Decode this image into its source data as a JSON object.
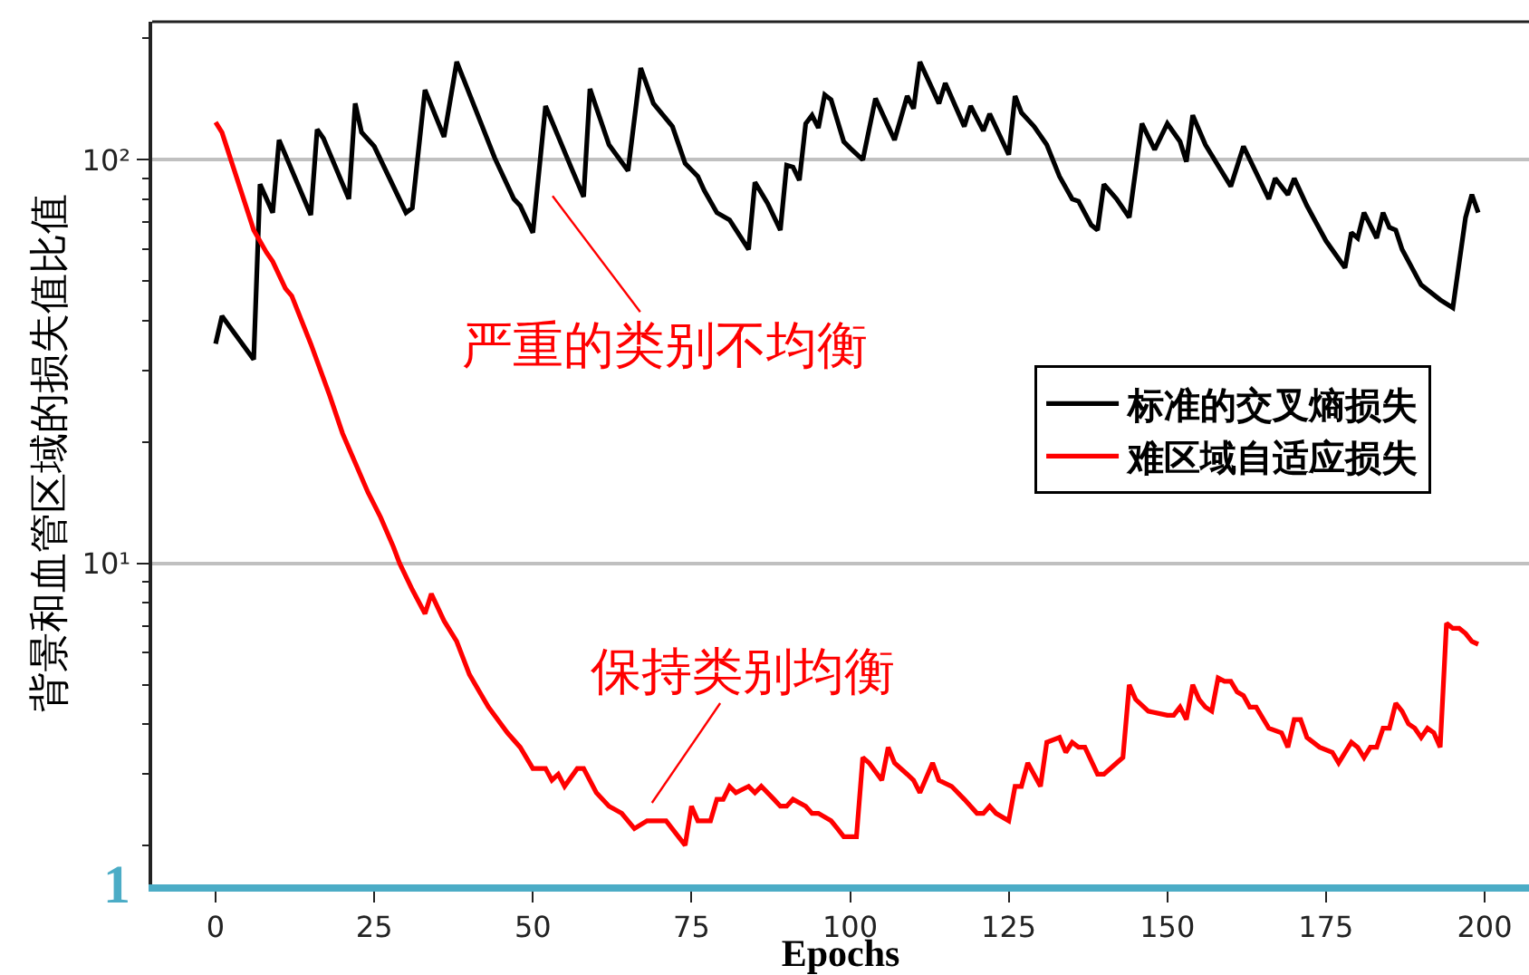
{
  "chart_data": {
    "type": "line",
    "xlabel": "Epochs",
    "ylabel": "背景和血管区域的损失值比值",
    "annotations": [
      "严重的类别不均衡",
      "保持类别均衡",
      "1"
    ],
    "xlim": [
      -10,
      207
    ],
    "xticks": [
      0,
      25,
      50,
      75,
      100,
      125,
      150,
      175,
      200
    ],
    "ylim": [
      1.6,
      220
    ],
    "yticks": [
      {
        "value": 2,
        "label": null
      },
      {
        "value": 3,
        "label": null
      },
      {
        "value": 4,
        "label": null
      },
      {
        "value": 5,
        "label": null
      },
      {
        "value": 6,
        "label": null
      },
      {
        "value": 7,
        "label": null
      },
      {
        "value": 8,
        "label": null
      },
      {
        "value": 9,
        "label": null
      },
      {
        "value": 10,
        "label": "10¹"
      },
      {
        "value": 20,
        "label": null
      },
      {
        "value": 30,
        "label": null
      },
      {
        "value": 40,
        "label": null
      },
      {
        "value": 50,
        "label": null
      },
      {
        "value": 60,
        "label": null
      },
      {
        "value": 70,
        "label": null
      },
      {
        "value": 80,
        "label": null
      },
      {
        "value": 90,
        "label": null
      },
      {
        "value": 100,
        "label": "10²"
      },
      {
        "value": 200,
        "label": null
      }
    ],
    "log": "y",
    "grid": "y",
    "legend": "right",
    "series": [
      {
        "name": "标准的交叉熵损失",
        "color": "#000000",
        "x": [
          0,
          1,
          6,
          7,
          9,
          10,
          15,
          16,
          17,
          21,
          22,
          23,
          25,
          30,
          31,
          33,
          36,
          38,
          44,
          47,
          48,
          50,
          52,
          56,
          58,
          59,
          62,
          65,
          67,
          69,
          72,
          74,
          76,
          77,
          79,
          81,
          84,
          85,
          87,
          89,
          90,
          91,
          92,
          93,
          94,
          95,
          96,
          97,
          99,
          100,
          102,
          104,
          107,
          109,
          110,
          111,
          114,
          115,
          118,
          119,
          121,
          122,
          125,
          126,
          127,
          129,
          131,
          133,
          135,
          136,
          138,
          139,
          140,
          142,
          144,
          146,
          148,
          150,
          152,
          153,
          154,
          156,
          160,
          162,
          166,
          167,
          169,
          170,
          172,
          173,
          175,
          178,
          179,
          180,
          181,
          183,
          184,
          185,
          186,
          187,
          190,
          193,
          195,
          197,
          198,
          199
        ],
        "values": [
          35,
          41,
          32,
          87,
          74,
          112,
          73,
          119,
          113,
          80,
          138,
          117,
          108,
          74,
          76,
          149,
          114,
          175,
          101,
          80,
          77,
          66,
          136,
          96,
          81,
          150,
          109,
          94,
          169,
          138,
          121,
          98,
          91,
          84,
          74,
          71,
          60,
          88,
          78,
          67,
          97,
          96,
          89,
          123,
          129,
          120,
          145,
          141,
          111,
          107,
          100,
          142,
          112,
          144,
          134,
          175,
          138,
          155,
          121,
          136,
          118,
          130,
          103,
          144,
          131,
          121,
          109,
          91,
          80,
          79,
          69,
          67,
          87,
          80,
          72,
          123,
          106,
          123,
          111,
          99,
          129,
          109,
          86,
          108,
          80,
          90,
          82,
          90,
          77,
          72,
          63,
          54,
          66,
          64,
          74,
          64,
          74,
          68,
          67,
          60,
          49,
          45,
          43,
          72,
          82,
          74
        ]
      },
      {
        "name": "难区域自适应损失",
        "color": "#ff0000",
        "x": [
          0,
          1,
          6,
          8,
          9,
          11,
          12,
          15,
          18,
          20,
          24,
          26,
          28,
          29,
          31,
          33,
          34,
          36,
          38,
          40,
          43,
          46,
          48,
          50,
          52,
          53,
          54,
          55,
          57,
          58,
          60,
          62,
          64,
          66,
          68,
          71,
          74,
          75,
          76,
          78,
          79,
          80,
          81,
          82,
          84,
          85,
          86,
          88,
          89,
          90,
          91,
          93,
          94,
          95,
          97,
          98,
          99,
          101,
          102,
          103,
          105,
          106,
          107,
          109,
          110,
          111,
          113,
          114,
          116,
          118,
          120,
          121,
          122,
          123,
          125,
          126,
          127,
          128,
          130,
          131,
          133,
          134,
          135,
          136,
          137,
          139,
          140,
          142,
          143,
          144,
          145,
          147,
          150,
          151,
          152,
          153,
          154,
          155,
          156,
          157,
          158,
          159,
          160,
          161,
          162,
          163,
          164,
          166,
          168,
          169,
          170,
          171,
          172,
          174,
          176,
          177,
          179,
          180,
          181,
          182,
          183,
          184,
          185,
          186,
          187,
          188,
          189,
          190,
          191,
          192,
          193,
          194,
          195,
          196,
          197,
          198,
          199
        ],
        "values": [
          124,
          117,
          67,
          59,
          56,
          48,
          46,
          35,
          26,
          21,
          15,
          13,
          11,
          10,
          8.6,
          7.5,
          8.4,
          7.2,
          6.4,
          5.3,
          4.4,
          3.8,
          3.5,
          3.1,
          3.1,
          2.9,
          3,
          2.8,
          3.1,
          3.1,
          2.7,
          2.5,
          2.4,
          2.2,
          2.3,
          2.3,
          2,
          2.5,
          2.3,
          2.3,
          2.6,
          2.6,
          2.8,
          2.7,
          2.8,
          2.7,
          2.8,
          2.6,
          2.5,
          2.5,
          2.6,
          2.5,
          2.4,
          2.4,
          2.3,
          2.2,
          2.1,
          2.1,
          3.3,
          3.2,
          2.9,
          3.5,
          3.2,
          3,
          2.9,
          2.7,
          3.2,
          2.9,
          2.8,
          2.6,
          2.4,
          2.4,
          2.5,
          2.4,
          2.3,
          2.8,
          2.8,
          3.2,
          2.8,
          3.6,
          3.7,
          3.4,
          3.6,
          3.5,
          3.5,
          3,
          3,
          3.2,
          3.3,
          5,
          4.6,
          4.3,
          4.2,
          4.2,
          4.4,
          4.1,
          5,
          4.6,
          4.4,
          4.3,
          5.2,
          5.1,
          5.1,
          4.8,
          4.7,
          4.4,
          4.4,
          3.9,
          3.8,
          3.5,
          4.1,
          4.1,
          3.7,
          3.5,
          3.4,
          3.2,
          3.6,
          3.5,
          3.3,
          3.5,
          3.5,
          3.9,
          3.9,
          4.5,
          4.3,
          4,
          3.9,
          3.7,
          3.9,
          3.8,
          3.5,
          7.1,
          6.9,
          6.9,
          6.7,
          6.4,
          6.3
        ]
      }
    ]
  }
}
